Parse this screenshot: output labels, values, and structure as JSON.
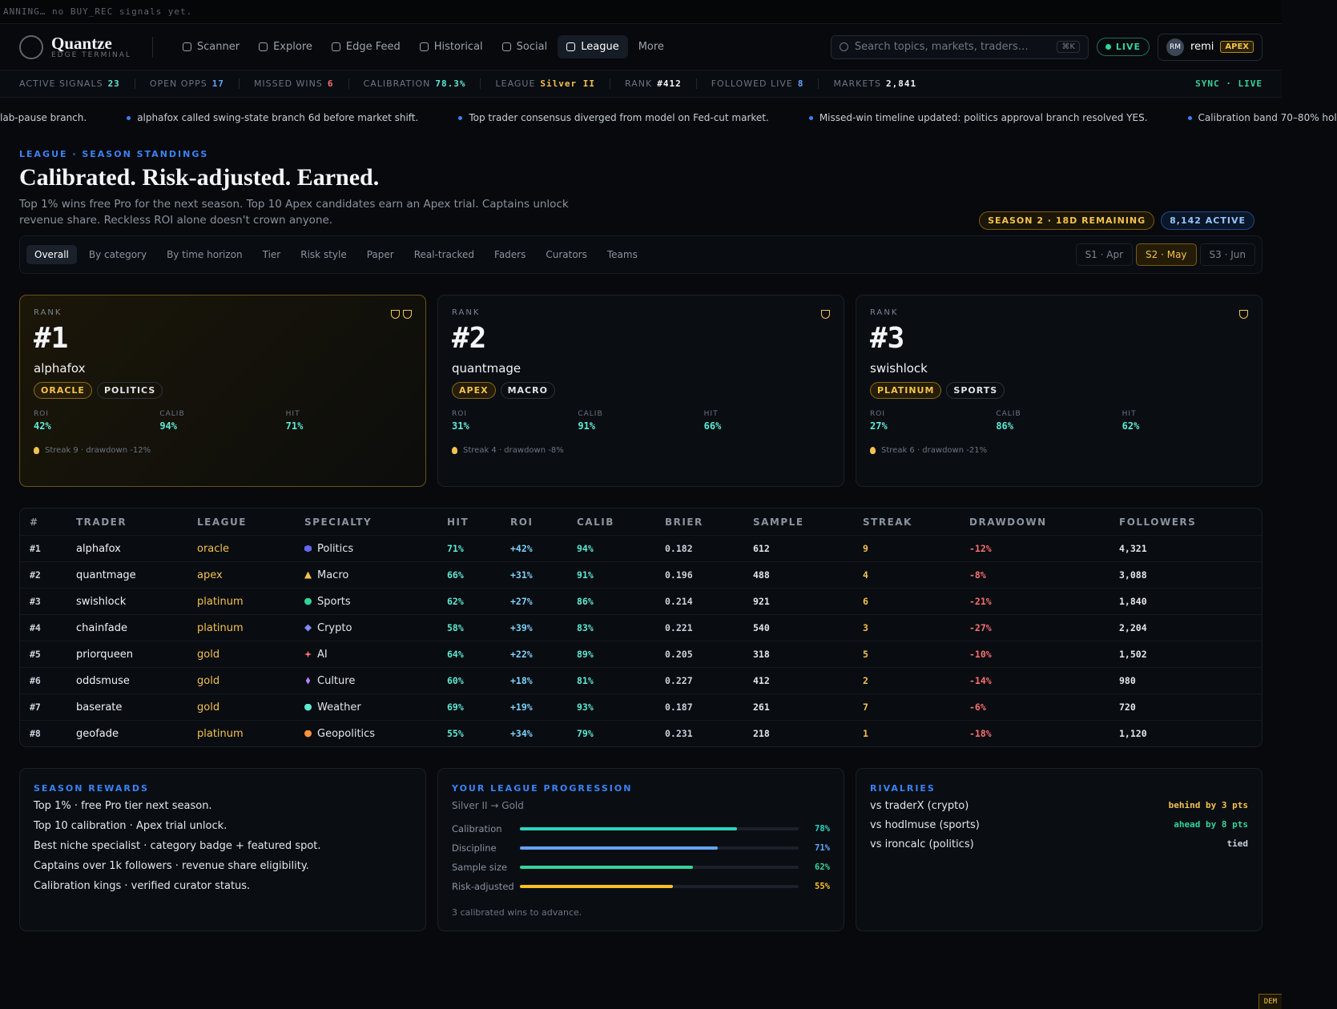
{
  "top_strip": "ANNING… no BUY_REC signals yet.",
  "nav": {
    "brand": "Quantze",
    "brand_sub": "EDGE TERMINAL",
    "items": [
      "Scanner",
      "Explore",
      "Edge Feed",
      "Historical",
      "Social",
      "League",
      "More"
    ],
    "search": "Search topics, markets, traders…",
    "shortcut": "⌘K",
    "live": "LIVE",
    "avatar": "RM",
    "user": "remi",
    "user_badge": "APEX"
  },
  "stats": {
    "items": [
      {
        "label": "ACTIVE SIGNALS",
        "value": "23"
      },
      {
        "label": "OPEN OPPS",
        "value": "17"
      },
      {
        "label": "MISSED WINS",
        "value": "6"
      },
      {
        "label": "CALIBRATION",
        "value": "78.3%"
      },
      {
        "label": "LEAGUE",
        "value": "Silver II"
      },
      {
        "label": "RANK",
        "value": "#412"
      },
      {
        "label": "FOLLOWED LIVE",
        "value": "8"
      },
      {
        "label": "MARKETS",
        "value": "2,841"
      }
    ],
    "sync": "SYNC · LIVE"
  },
  "ticker": [
    "lab-pause branch.",
    "alphafox called swing-state branch 6d before market shift.",
    "Top trader consensus diverged from model on Fed-cut market.",
    "Missed-win timeline updated: politics approval branch resolved YES.",
    "Calibration band 70–80% hol"
  ],
  "header": {
    "eyebrow": "LEAGUE · SEASON STANDINGS",
    "title": "Calibrated. Risk-adjusted. Earned.",
    "description": "Top 1% wins free Pro for the next season. Top 10 Apex candidates earn an Apex trial. Captains unlock revenue share. Reckless ROI alone doesn't crown anyone.",
    "badges": [
      "SEASON 2 · 18D REMAINING",
      "8,142 ACTIVE"
    ]
  },
  "tabs": {
    "items": [
      "Overall",
      "By category",
      "By time horizon",
      "Tier",
      "Risk style",
      "Paper",
      "Real-tracked",
      "Faders",
      "Curators",
      "Teams"
    ],
    "seasons": [
      "S1 · Apr",
      "S2 · May",
      "S3 · Jun"
    ]
  },
  "podium": [
    {
      "rank_label": "RANK",
      "rank": "#1",
      "name": "alphafox",
      "badges": [
        "ORACLE",
        "POLITICS"
      ],
      "stats": [
        {
          "label": "ROI",
          "value": "42%"
        },
        {
          "label": "CALIB",
          "value": "94%"
        },
        {
          "label": "HIT",
          "value": "71%"
        }
      ],
      "streak": "Streak 9 · drawdown -12%"
    },
    {
      "rank_label": "RANK",
      "rank": "#2",
      "name": "quantmage",
      "badges": [
        "APEX",
        "MACRO"
      ],
      "stats": [
        {
          "label": "ROI",
          "value": "31%"
        },
        {
          "label": "CALIB",
          "value": "91%"
        },
        {
          "label": "HIT",
          "value": "66%"
        }
      ],
      "streak": "Streak 4 · drawdown -8%"
    },
    {
      "rank_label": "RANK",
      "rank": "#3",
      "name": "swishlock",
      "badges": [
        "PLATINUM",
        "SPORTS"
      ],
      "stats": [
        {
          "label": "ROI",
          "value": "27%"
        },
        {
          "label": "CALIB",
          "value": "86%"
        },
        {
          "label": "HIT",
          "value": "62%"
        }
      ],
      "streak": "Streak 6 · drawdown -21%"
    }
  ],
  "table": {
    "columns": [
      "#",
      "TRADER",
      "LEAGUE",
      "SPECIALTY",
      "HIT",
      "ROI",
      "CALIB",
      "BRIER",
      "SAMPLE",
      "STREAK",
      "DRAWDOWN",
      "FOLLOWERS"
    ],
    "rows": [
      [
        "#1",
        "alphafox",
        "oracle",
        "Politics",
        "71%",
        "+42%",
        "94%",
        "0.182",
        "612",
        "9",
        "-12%",
        "4,321"
      ],
      [
        "#2",
        "quantmage",
        "apex",
        "Macro",
        "66%",
        "+31%",
        "91%",
        "0.196",
        "488",
        "4",
        "-8%",
        "3,088"
      ],
      [
        "#3",
        "swishlock",
        "platinum",
        "Sports",
        "62%",
        "+27%",
        "86%",
        "0.214",
        "921",
        "6",
        "-21%",
        "1,840"
      ],
      [
        "#4",
        "chainfade",
        "platinum",
        "Crypto",
        "58%",
        "+39%",
        "83%",
        "0.221",
        "540",
        "3",
        "-27%",
        "2,204"
      ],
      [
        "#5",
        "priorqueen",
        "gold",
        "AI",
        "64%",
        "+22%",
        "89%",
        "0.205",
        "318",
        "5",
        "-10%",
        "1,502"
      ],
      [
        "#6",
        "oddsmuse",
        "gold",
        "Culture",
        "60%",
        "+18%",
        "81%",
        "0.227",
        "412",
        "2",
        "-14%",
        "980"
      ],
      [
        "#7",
        "baserate",
        "gold",
        "Weather",
        "69%",
        "+19%",
        "93%",
        "0.187",
        "261",
        "7",
        "-6%",
        "720"
      ],
      [
        "#8",
        "geofade",
        "platinum",
        "Geopolitics",
        "55%",
        "+34%",
        "79%",
        "0.231",
        "218",
        "1",
        "-18%",
        "1,120"
      ]
    ]
  },
  "rewards": {
    "title": "SEASON REWARDS",
    "items": [
      "Top 1% · free Pro tier next season.",
      "Top 10 calibration · Apex trial unlock.",
      "Best niche specialist · category badge + featured spot.",
      "Captains over 1k followers · revenue share eligibility.",
      "Calibration kings · verified curator status."
    ]
  },
  "progression": {
    "title": "YOUR LEAGUE PROGRESSION",
    "subtitle": "Silver II → Gold",
    "max": 100,
    "bars": [
      {
        "label": "Calibration",
        "value": 78,
        "value_label": "78%",
        "color": "#2dd4bf"
      },
      {
        "label": "Discipline",
        "value": 71,
        "value_label": "71%",
        "color": "#60a5fa"
      },
      {
        "label": "Sample size",
        "value": 62,
        "value_label": "62%",
        "color": "#34d399"
      },
      {
        "label": "Risk-adjusted",
        "value": 55,
        "value_label": "55%",
        "color": "#fbbf24"
      }
    ],
    "footer": "3 calibrated wins to advance."
  },
  "rivalries": {
    "title": "RIVALRIES",
    "rows": [
      {
        "name": "vs traderX (crypto)",
        "status": "behind by 3 pts"
      },
      {
        "name": "vs hodlmuse (sports)",
        "status": "ahead by 8 pts"
      },
      {
        "name": "vs ironcalc (politics)",
        "status": "tied"
      }
    ]
  },
  "corner": "DEM"
}
